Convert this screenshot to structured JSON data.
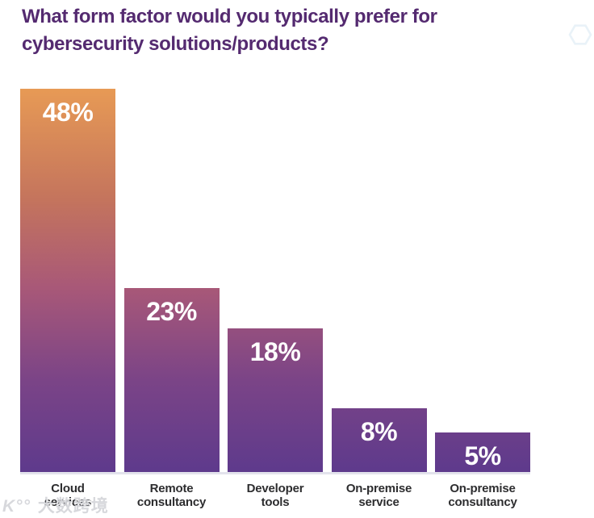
{
  "title": {
    "lines": [
      "What form factor would you typically prefer for",
      "cybersecurity solutions/products?"
    ],
    "full": "What form factor would you typically prefer for cybersecurity solutions/products?",
    "color": "#542a70"
  },
  "chart_data": {
    "type": "bar",
    "title": "What form factor would you typically prefer for cybersecurity solutions/products?",
    "categories": [
      "Cloud\nservices",
      "Remote\nconsultancy",
      "Developer\ntools",
      "On-premise\nservice",
      "On-premise\nconsultancy"
    ],
    "values": [
      48,
      23,
      18,
      8,
      5
    ],
    "value_labels": [
      "48%",
      "23%",
      "18%",
      "8%",
      "5%"
    ],
    "unit": "%",
    "xlabel": "",
    "ylabel": "",
    "ylim": [
      0,
      48
    ],
    "grid": false,
    "legend": "none",
    "axes_ticks_visible": false,
    "bar_gradient_top_to_bottom": [
      "#e79a55",
      "#c4745d",
      "#a85878",
      "#7b4487",
      "#5e3a8c"
    ],
    "value_label_color": "#ffffff",
    "category_label_color": "#2d2d2f",
    "baseline_color": "#e3e3ec"
  },
  "decorations": {
    "hexagon_outline_color": "#e9f2f8",
    "watermark": {
      "logo": "K°°",
      "text": "大数跨境"
    }
  }
}
